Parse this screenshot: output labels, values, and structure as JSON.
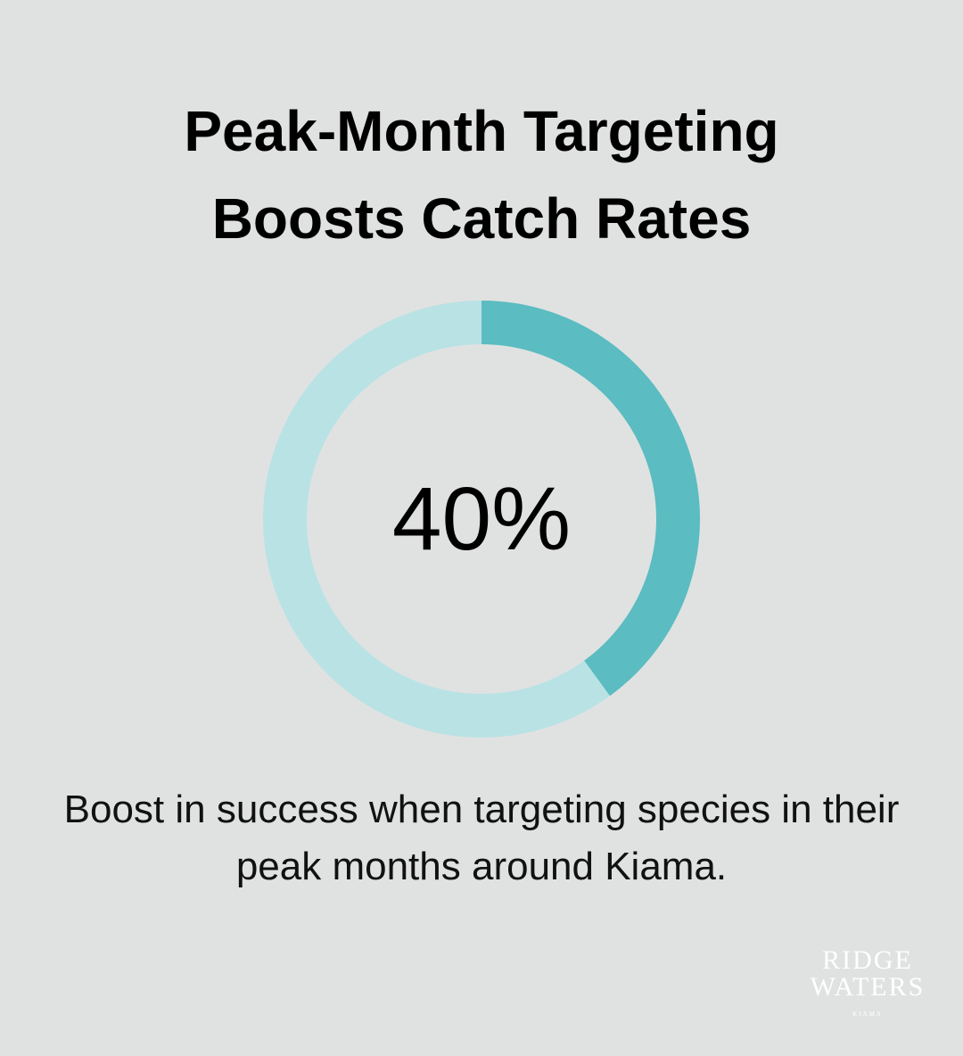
{
  "chart_data": {
    "type": "donut",
    "title": "Peak-Month Targeting Boosts Catch Rates",
    "values": [
      40
    ],
    "value_labels": [
      "40%"
    ],
    "ylim": [
      0,
      100
    ],
    "color": "#5bbcc1",
    "track_color": "#b9e2e5",
    "caption": "Boost in success when targeting species in their peak months around Kiama."
  },
  "logo": {
    "lines": [
      "RIDGE",
      "WATERS",
      "KIAMA"
    ]
  }
}
